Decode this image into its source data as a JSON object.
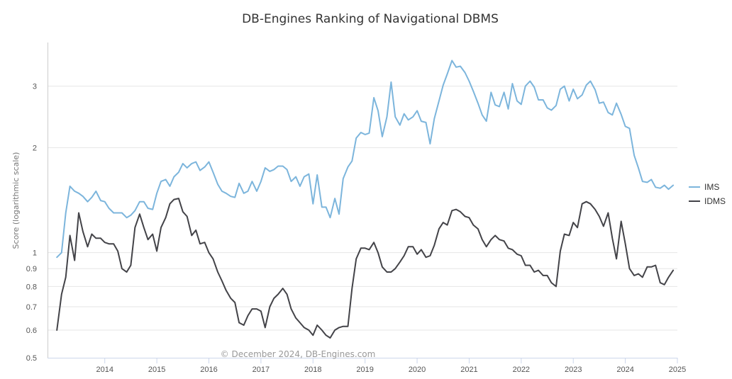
{
  "chart_data": {
    "type": "line",
    "title": "DB-Engines Ranking of Navigational DBMS",
    "ylabel": "Score (logarithmic scale)",
    "xlabel": "",
    "y_scale": "log",
    "ylim": [
      0.5,
      4
    ],
    "y_ticks": [
      {
        "value": 0.5,
        "label": "0.5"
      },
      {
        "value": 0.6,
        "label": "0.6"
      },
      {
        "value": 0.7,
        "label": "0.7"
      },
      {
        "value": 0.8,
        "label": "0.8"
      },
      {
        "value": 0.9,
        "label": "0.9"
      },
      {
        "value": 1,
        "label": "1"
      },
      {
        "value": 2,
        "label": "2"
      },
      {
        "value": 3,
        "label": "3"
      }
    ],
    "x_ticks": [
      {
        "value": 2014,
        "label": "2014"
      },
      {
        "value": 2015,
        "label": "2015"
      },
      {
        "value": 2016,
        "label": "2016"
      },
      {
        "value": 2017,
        "label": "2017"
      },
      {
        "value": 2018,
        "label": "2018"
      },
      {
        "value": 2019,
        "label": "2019"
      },
      {
        "value": 2020,
        "label": "2020"
      },
      {
        "value": 2021,
        "label": "2021"
      },
      {
        "value": 2022,
        "label": "2022"
      },
      {
        "value": 2023,
        "label": "2023"
      },
      {
        "value": 2024,
        "label": "2024"
      },
      {
        "value": 2025,
        "label": "2025"
      }
    ],
    "xlim": [
      2012.9,
      2025.0
    ],
    "grid": "horizontal",
    "legend_position": "right",
    "credit": "© December 2024, DB-Engines.com",
    "series": [
      {
        "name": "IMS",
        "color": "#7cb5dc",
        "points": [
          [
            2013.08,
            0.97
          ],
          [
            2013.17,
            1.0
          ],
          [
            2013.25,
            1.3
          ],
          [
            2013.33,
            1.55
          ],
          [
            2013.42,
            1.5
          ],
          [
            2013.5,
            1.48
          ],
          [
            2013.58,
            1.45
          ],
          [
            2013.67,
            1.4
          ],
          [
            2013.75,
            1.44
          ],
          [
            2013.83,
            1.5
          ],
          [
            2013.92,
            1.41
          ],
          [
            2014.0,
            1.4
          ],
          [
            2014.08,
            1.34
          ],
          [
            2014.17,
            1.3
          ],
          [
            2014.25,
            1.3
          ],
          [
            2014.33,
            1.3
          ],
          [
            2014.42,
            1.26
          ],
          [
            2014.5,
            1.28
          ],
          [
            2014.58,
            1.32
          ],
          [
            2014.67,
            1.4
          ],
          [
            2014.75,
            1.4
          ],
          [
            2014.83,
            1.34
          ],
          [
            2014.92,
            1.33
          ],
          [
            2015.0,
            1.48
          ],
          [
            2015.08,
            1.6
          ],
          [
            2015.17,
            1.62
          ],
          [
            2015.25,
            1.55
          ],
          [
            2015.33,
            1.65
          ],
          [
            2015.42,
            1.7
          ],
          [
            2015.5,
            1.8
          ],
          [
            2015.58,
            1.75
          ],
          [
            2015.67,
            1.8
          ],
          [
            2015.75,
            1.82
          ],
          [
            2015.83,
            1.72
          ],
          [
            2015.92,
            1.76
          ],
          [
            2016.0,
            1.82
          ],
          [
            2016.08,
            1.7
          ],
          [
            2016.17,
            1.57
          ],
          [
            2016.25,
            1.5
          ],
          [
            2016.33,
            1.48
          ],
          [
            2016.42,
            1.45
          ],
          [
            2016.5,
            1.44
          ],
          [
            2016.58,
            1.58
          ],
          [
            2016.67,
            1.48
          ],
          [
            2016.75,
            1.5
          ],
          [
            2016.83,
            1.6
          ],
          [
            2016.92,
            1.5
          ],
          [
            2017.0,
            1.6
          ],
          [
            2017.08,
            1.75
          ],
          [
            2017.17,
            1.71
          ],
          [
            2017.25,
            1.73
          ],
          [
            2017.33,
            1.77
          ],
          [
            2017.42,
            1.77
          ],
          [
            2017.5,
            1.73
          ],
          [
            2017.58,
            1.6
          ],
          [
            2017.67,
            1.65
          ],
          [
            2017.75,
            1.55
          ],
          [
            2017.83,
            1.65
          ],
          [
            2017.92,
            1.68
          ],
          [
            2018.0,
            1.38
          ],
          [
            2018.08,
            1.67
          ],
          [
            2018.17,
            1.35
          ],
          [
            2018.25,
            1.35
          ],
          [
            2018.33,
            1.26
          ],
          [
            2018.42,
            1.43
          ],
          [
            2018.5,
            1.29
          ],
          [
            2018.58,
            1.63
          ],
          [
            2018.67,
            1.76
          ],
          [
            2018.75,
            1.83
          ],
          [
            2018.83,
            2.13
          ],
          [
            2018.92,
            2.21
          ],
          [
            2019.0,
            2.18
          ],
          [
            2019.08,
            2.2
          ],
          [
            2019.17,
            2.78
          ],
          [
            2019.25,
            2.55
          ],
          [
            2019.33,
            2.15
          ],
          [
            2019.42,
            2.45
          ],
          [
            2019.5,
            3.08
          ],
          [
            2019.58,
            2.45
          ],
          [
            2019.67,
            2.32
          ],
          [
            2019.75,
            2.5
          ],
          [
            2019.83,
            2.4
          ],
          [
            2019.92,
            2.45
          ],
          [
            2020.0,
            2.55
          ],
          [
            2020.08,
            2.38
          ],
          [
            2020.17,
            2.36
          ],
          [
            2020.25,
            2.05
          ],
          [
            2020.33,
            2.42
          ],
          [
            2020.42,
            2.72
          ],
          [
            2020.5,
            3.02
          ],
          [
            2020.58,
            3.25
          ],
          [
            2020.67,
            3.55
          ],
          [
            2020.75,
            3.4
          ],
          [
            2020.83,
            3.42
          ],
          [
            2020.92,
            3.28
          ],
          [
            2021.0,
            3.1
          ],
          [
            2021.08,
            2.9
          ],
          [
            2021.17,
            2.68
          ],
          [
            2021.25,
            2.48
          ],
          [
            2021.33,
            2.38
          ],
          [
            2021.42,
            2.88
          ],
          [
            2021.5,
            2.65
          ],
          [
            2021.58,
            2.62
          ],
          [
            2021.67,
            2.88
          ],
          [
            2021.75,
            2.58
          ],
          [
            2021.83,
            3.05
          ],
          [
            2021.92,
            2.72
          ],
          [
            2022.0,
            2.66
          ],
          [
            2022.08,
            3.0
          ],
          [
            2022.17,
            3.1
          ],
          [
            2022.25,
            2.98
          ],
          [
            2022.33,
            2.74
          ],
          [
            2022.42,
            2.74
          ],
          [
            2022.5,
            2.6
          ],
          [
            2022.58,
            2.56
          ],
          [
            2022.67,
            2.64
          ],
          [
            2022.75,
            2.94
          ],
          [
            2022.83,
            3.0
          ],
          [
            2022.92,
            2.72
          ],
          [
            2023.0,
            2.94
          ],
          [
            2023.08,
            2.76
          ],
          [
            2023.17,
            2.83
          ],
          [
            2023.25,
            3.02
          ],
          [
            2023.33,
            3.1
          ],
          [
            2023.42,
            2.93
          ],
          [
            2023.5,
            2.68
          ],
          [
            2023.58,
            2.7
          ],
          [
            2023.67,
            2.52
          ],
          [
            2023.75,
            2.48
          ],
          [
            2023.83,
            2.68
          ],
          [
            2023.92,
            2.49
          ],
          [
            2024.0,
            2.3
          ],
          [
            2024.08,
            2.27
          ],
          [
            2024.17,
            1.9
          ],
          [
            2024.25,
            1.75
          ],
          [
            2024.33,
            1.6
          ],
          [
            2024.42,
            1.59
          ],
          [
            2024.5,
            1.62
          ],
          [
            2024.58,
            1.54
          ],
          [
            2024.67,
            1.53
          ],
          [
            2024.75,
            1.56
          ],
          [
            2024.83,
            1.52
          ],
          [
            2024.92,
            1.56
          ]
        ]
      },
      {
        "name": "IDMS",
        "color": "#434348",
        "points": [
          [
            2013.08,
            0.6
          ],
          [
            2013.17,
            0.76
          ],
          [
            2013.25,
            0.85
          ],
          [
            2013.33,
            1.12
          ],
          [
            2013.42,
            0.95
          ],
          [
            2013.5,
            1.3
          ],
          [
            2013.58,
            1.15
          ],
          [
            2013.67,
            1.04
          ],
          [
            2013.75,
            1.13
          ],
          [
            2013.83,
            1.1
          ],
          [
            2013.92,
            1.1
          ],
          [
            2014.0,
            1.07
          ],
          [
            2014.08,
            1.06
          ],
          [
            2014.17,
            1.06
          ],
          [
            2014.25,
            1.01
          ],
          [
            2014.33,
            0.9
          ],
          [
            2014.42,
            0.88
          ],
          [
            2014.5,
            0.92
          ],
          [
            2014.58,
            1.18
          ],
          [
            2014.67,
            1.29
          ],
          [
            2014.75,
            1.18
          ],
          [
            2014.83,
            1.09
          ],
          [
            2014.92,
            1.13
          ],
          [
            2015.0,
            1.01
          ],
          [
            2015.08,
            1.18
          ],
          [
            2015.17,
            1.26
          ],
          [
            2015.25,
            1.38
          ],
          [
            2015.33,
            1.42
          ],
          [
            2015.42,
            1.43
          ],
          [
            2015.5,
            1.31
          ],
          [
            2015.58,
            1.27
          ],
          [
            2015.67,
            1.12
          ],
          [
            2015.75,
            1.16
          ],
          [
            2015.83,
            1.06
          ],
          [
            2015.92,
            1.07
          ],
          [
            2016.0,
            1.0
          ],
          [
            2016.08,
            0.96
          ],
          [
            2016.17,
            0.88
          ],
          [
            2016.25,
            0.83
          ],
          [
            2016.33,
            0.78
          ],
          [
            2016.42,
            0.74
          ],
          [
            2016.5,
            0.72
          ],
          [
            2016.58,
            0.63
          ],
          [
            2016.67,
            0.62
          ],
          [
            2016.75,
            0.66
          ],
          [
            2016.83,
            0.69
          ],
          [
            2016.92,
            0.69
          ],
          [
            2017.0,
            0.68
          ],
          [
            2017.08,
            0.61
          ],
          [
            2017.17,
            0.7
          ],
          [
            2017.25,
            0.74
          ],
          [
            2017.33,
            0.76
          ],
          [
            2017.42,
            0.79
          ],
          [
            2017.5,
            0.76
          ],
          [
            2017.58,
            0.69
          ],
          [
            2017.67,
            0.65
          ],
          [
            2017.75,
            0.63
          ],
          [
            2017.83,
            0.61
          ],
          [
            2017.92,
            0.6
          ],
          [
            2018.0,
            0.58
          ],
          [
            2018.08,
            0.62
          ],
          [
            2018.17,
            0.6
          ],
          [
            2018.25,
            0.58
          ],
          [
            2018.33,
            0.57
          ],
          [
            2018.42,
            0.6
          ],
          [
            2018.5,
            0.61
          ],
          [
            2018.58,
            0.615
          ],
          [
            2018.67,
            0.615
          ],
          [
            2018.75,
            0.79
          ],
          [
            2018.83,
            0.96
          ],
          [
            2018.92,
            1.03
          ],
          [
            2019.0,
            1.03
          ],
          [
            2019.08,
            1.02
          ],
          [
            2019.17,
            1.07
          ],
          [
            2019.25,
            1.0
          ],
          [
            2019.33,
            0.91
          ],
          [
            2019.42,
            0.88
          ],
          [
            2019.5,
            0.88
          ],
          [
            2019.58,
            0.9
          ],
          [
            2019.67,
            0.94
          ],
          [
            2019.75,
            0.98
          ],
          [
            2019.83,
            1.04
          ],
          [
            2019.92,
            1.04
          ],
          [
            2020.0,
            0.99
          ],
          [
            2020.08,
            1.02
          ],
          [
            2020.17,
            0.97
          ],
          [
            2020.25,
            0.98
          ],
          [
            2020.33,
            1.05
          ],
          [
            2020.42,
            1.17
          ],
          [
            2020.5,
            1.22
          ],
          [
            2020.58,
            1.2
          ],
          [
            2020.67,
            1.32
          ],
          [
            2020.75,
            1.33
          ],
          [
            2020.83,
            1.31
          ],
          [
            2020.92,
            1.27
          ],
          [
            2021.0,
            1.26
          ],
          [
            2021.08,
            1.2
          ],
          [
            2021.17,
            1.17
          ],
          [
            2021.25,
            1.09
          ],
          [
            2021.33,
            1.04
          ],
          [
            2021.42,
            1.09
          ],
          [
            2021.5,
            1.12
          ],
          [
            2021.58,
            1.09
          ],
          [
            2021.67,
            1.08
          ],
          [
            2021.75,
            1.03
          ],
          [
            2021.83,
            1.02
          ],
          [
            2021.92,
            0.99
          ],
          [
            2022.0,
            0.98
          ],
          [
            2022.08,
            0.92
          ],
          [
            2022.17,
            0.92
          ],
          [
            2022.25,
            0.88
          ],
          [
            2022.33,
            0.89
          ],
          [
            2022.42,
            0.86
          ],
          [
            2022.5,
            0.86
          ],
          [
            2022.58,
            0.82
          ],
          [
            2022.67,
            0.8
          ],
          [
            2022.75,
            1.01
          ],
          [
            2022.83,
            1.13
          ],
          [
            2022.92,
            1.12
          ],
          [
            2023.0,
            1.22
          ],
          [
            2023.08,
            1.18
          ],
          [
            2023.17,
            1.38
          ],
          [
            2023.25,
            1.4
          ],
          [
            2023.33,
            1.38
          ],
          [
            2023.42,
            1.33
          ],
          [
            2023.5,
            1.27
          ],
          [
            2023.58,
            1.19
          ],
          [
            2023.67,
            1.3
          ],
          [
            2023.75,
            1.1
          ],
          [
            2023.83,
            0.96
          ],
          [
            2023.92,
            1.23
          ],
          [
            2024.0,
            1.06
          ],
          [
            2024.08,
            0.9
          ],
          [
            2024.17,
            0.86
          ],
          [
            2024.25,
            0.87
          ],
          [
            2024.33,
            0.85
          ],
          [
            2024.42,
            0.91
          ],
          [
            2024.5,
            0.91
          ],
          [
            2024.58,
            0.92
          ],
          [
            2024.67,
            0.82
          ],
          [
            2024.75,
            0.81
          ],
          [
            2024.83,
            0.85
          ],
          [
            2024.92,
            0.89
          ]
        ]
      }
    ]
  }
}
